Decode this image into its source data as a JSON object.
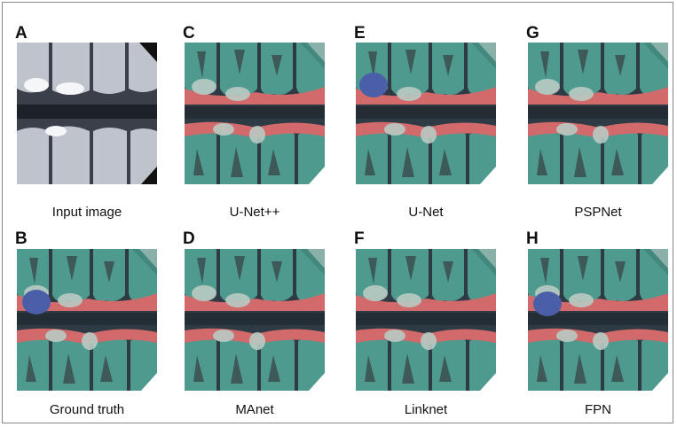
{
  "panels": [
    {
      "letter": "A",
      "caption": "Input image"
    },
    {
      "letter": "B",
      "caption": "Ground truth"
    },
    {
      "letter": "C",
      "caption": "U-Net++"
    },
    {
      "letter": "D",
      "caption": "MAnet"
    },
    {
      "letter": "E",
      "caption": "U-Net"
    },
    {
      "letter": "F",
      "caption": "Linknet"
    },
    {
      "letter": "G",
      "caption": "PSPNet"
    },
    {
      "letter": "H",
      "caption": "FPN"
    }
  ]
}
